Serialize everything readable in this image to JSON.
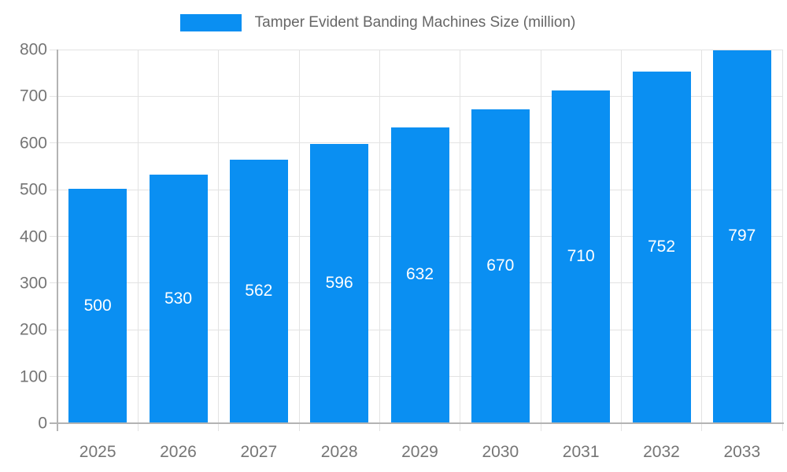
{
  "chart_data": {
    "type": "bar",
    "title": "Tamper Evident Banding Machines Size (million)",
    "categories": [
      "2025",
      "2026",
      "2027",
      "2028",
      "2029",
      "2030",
      "2031",
      "2032",
      "2033"
    ],
    "values": [
      500,
      530,
      562,
      596,
      632,
      670,
      710,
      752,
      797
    ],
    "xlabel": "",
    "ylabel": "",
    "ylim": [
      0,
      800
    ],
    "ytick_step": 100,
    "grid": "on",
    "legend_position": "top",
    "value_labels": "centered inside bars",
    "colors": {
      "bar": "#0a8ff2",
      "value_label": "#ffffff",
      "grid": "#e3e3e3",
      "axis": "#b3b3b3",
      "tick_label": "#757575",
      "legend_text": "#666666",
      "background": "#ffffff"
    }
  }
}
